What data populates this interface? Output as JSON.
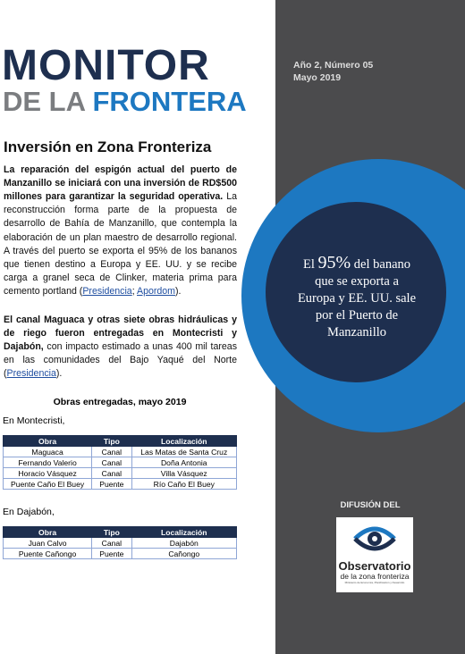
{
  "header": {
    "logo_line1": "MONITOR",
    "logo_de_la": "DE LA",
    "logo_frontera": "FRONTERA",
    "issue": "Año 2, Número 05",
    "date": "Mayo 2019"
  },
  "article": {
    "title": "Inversión en Zona Fronteriza",
    "p1": {
      "bold": "La reparación del espigón actual del puerto de Manzanillo se iniciará con una inversión de RD$500 millones para garantizar la seguridad operativa.",
      "text": " La reconstrucción forma parte de la propuesta de desarrollo de Bahía de Manzanillo, que contempla la elaboración de un plan maestro de desarrollo regional. A través del puerto se exporta el 95% de los bananos que tienen destino a Europa y EE. UU. y se recibe carga a granel seca de Clinker, materia prima para cemento portland (",
      "link1": "Presidencia",
      "sep": "; ",
      "link2": "Apordom",
      "end": ")."
    },
    "p2": {
      "bold": "El canal Maguaca y otras siete obras hidráulicas y de riego fueron entregadas en Montecristi y Dajabón,",
      "text": " con impacto estimado a unas 400 mil tareas en las comunidades del Bajo Yaqué del Norte (",
      "link1": "Presidencia",
      "end": ")."
    },
    "tables_title": "Obras entregadas, mayo 2019",
    "tables": [
      {
        "caption": "En Montecristi,",
        "header": [
          "Obra",
          "Tipo",
          "Localización"
        ],
        "rows": [
          [
            "Maguaca",
            "Canal",
            "Las Matas de Santa Cruz"
          ],
          [
            "Fernando Valerio",
            "Canal",
            "Doña Antonia"
          ],
          [
            "Horacio Vásquez",
            "Canal",
            "Villa Vásquez"
          ],
          [
            "Puente Caño El Buey",
            "Puente",
            "Río Caño El Buey"
          ]
        ]
      },
      {
        "caption": "En Dajabón,",
        "header": [
          "Obra",
          "Tipo",
          "Localización"
        ],
        "rows": [
          [
            "Juan Calvo",
            "Canal",
            "Dajabón"
          ],
          [
            "Puente Cañongo",
            "Puente",
            "Cañongo"
          ]
        ]
      }
    ]
  },
  "callout": {
    "pre": "El ",
    "highlight": "95%",
    "post": " del banano que se exporta a Europa y EE. UU. sale por el Puerto de Manzanillo"
  },
  "sidebar": {
    "label": "DIFUSIÓN DEL",
    "logo_title": "Observatorio",
    "logo_subtitle": "de la zona fronteriza",
    "logo_small": "Ministerio de Economía, Planificación y Desarrollo"
  }
}
